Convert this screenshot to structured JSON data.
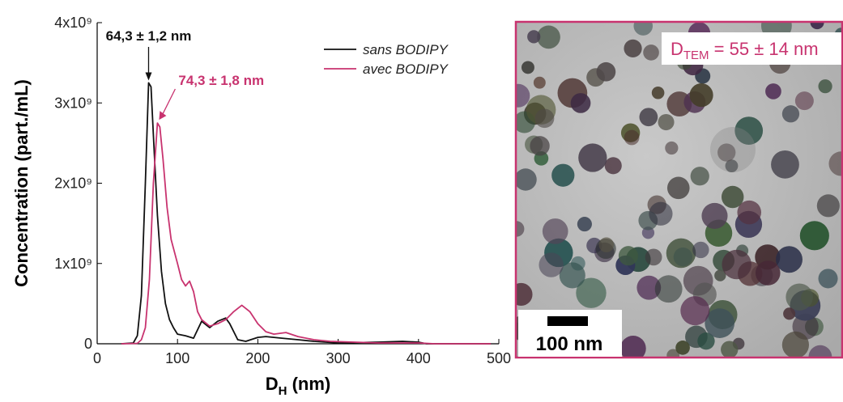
{
  "chart_data": {
    "type": "line",
    "y_label": "Concentration (part./mL)",
    "x_label": {
      "main": "D",
      "sub": "H",
      "rest": " (nm)"
    },
    "xlim": [
      0,
      500
    ],
    "xticks": [
      0,
      100,
      200,
      300,
      400,
      500
    ],
    "ylim": [
      0,
      4000000000
    ],
    "yticks": [
      0,
      {
        "value": 1000000000,
        "label": "1x10⁹"
      },
      {
        "value": 2000000000,
        "label": "2x10⁹"
      },
      {
        "value": 3000000000,
        "label": "3x10⁹"
      },
      {
        "value": 4000000000,
        "label": "4x10⁹"
      }
    ],
    "legend": "top-right",
    "annotations": [
      "64,3 ± 1,2 nm",
      "74,3 ± 1,8 nm"
    ],
    "series": [
      {
        "name": "sans BODIPY",
        "color": "#111111",
        "x": [
          30,
          45,
          50,
          55,
          60,
          64,
          67,
          70,
          75,
          80,
          85,
          90,
          95,
          100,
          110,
          120,
          130,
          140,
          150,
          160,
          165,
          175,
          185,
          200,
          210,
          230,
          250,
          270,
          300,
          350,
          380,
          400,
          410,
          450,
          490
        ],
        "values": [
          0,
          10000000,
          100000000,
          600000000,
          2000000000,
          3250000000,
          3200000000,
          2600000000,
          1600000000,
          900000000,
          500000000,
          300000000,
          200000000,
          120000000,
          100000000,
          70000000,
          280000000,
          200000000,
          280000000,
          320000000,
          250000000,
          50000000,
          30000000,
          80000000,
          90000000,
          70000000,
          50000000,
          30000000,
          10000000,
          20000000,
          30000000,
          20000000,
          0,
          0,
          0
        ]
      },
      {
        "name": "avec BODIPY",
        "color": "#c8336f",
        "x": [
          30,
          50,
          55,
          60,
          65,
          70,
          75,
          78,
          82,
          87,
          92,
          100,
          105,
          110,
          115,
          120,
          125,
          130,
          140,
          150,
          160,
          170,
          180,
          190,
          200,
          210,
          220,
          235,
          250,
          270,
          290,
          320,
          350,
          400,
          420,
          450,
          490
        ],
        "values": [
          0,
          5000000,
          50000000,
          200000000,
          800000000,
          2000000000,
          2750000000,
          2700000000,
          2300000000,
          1700000000,
          1300000000,
          1000000000,
          800000000,
          720000000,
          780000000,
          650000000,
          400000000,
          300000000,
          220000000,
          250000000,
          300000000,
          400000000,
          480000000,
          400000000,
          250000000,
          150000000,
          120000000,
          140000000,
          90000000,
          50000000,
          30000000,
          20000000,
          10000000,
          10000000,
          0,
          0,
          0
        ]
      }
    ]
  },
  "image_panel": {
    "label": {
      "main": "D",
      "sub": "TEM",
      "rest": " = 55 ± 14 nm"
    },
    "scale_bar": "100 nm"
  }
}
